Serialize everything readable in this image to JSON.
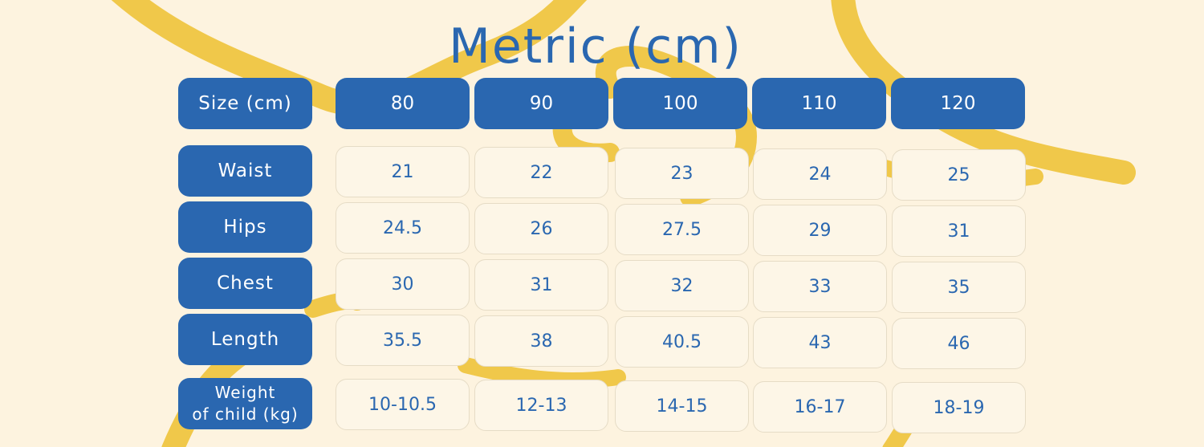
{
  "title": "Metric (cm)",
  "colors": {
    "background": "#fdf3df",
    "accent_blue": "#2a67b0",
    "ribbon_yellow": "#f0c84a",
    "value_cell_bg": "#fdf6e7"
  },
  "table": {
    "header_label": "Size (cm)",
    "sizes": [
      "80",
      "90",
      "100",
      "110",
      "120"
    ],
    "rows": [
      {
        "label": "Waist",
        "values": [
          "21",
          "22",
          "23",
          "24",
          "25"
        ]
      },
      {
        "label": "Hips",
        "values": [
          "24.5",
          "26",
          "27.5",
          "29",
          "31"
        ]
      },
      {
        "label": "Chest",
        "values": [
          "30",
          "31",
          "32",
          "33",
          "35"
        ]
      },
      {
        "label": "Length",
        "values": [
          "35.5",
          "38",
          "40.5",
          "43",
          "46"
        ]
      },
      {
        "label_line1": "Weight",
        "label_line2": "of child (kg)",
        "values": [
          "10-10.5",
          "12-13",
          "14-15",
          "16-17",
          "18-19"
        ]
      }
    ]
  }
}
